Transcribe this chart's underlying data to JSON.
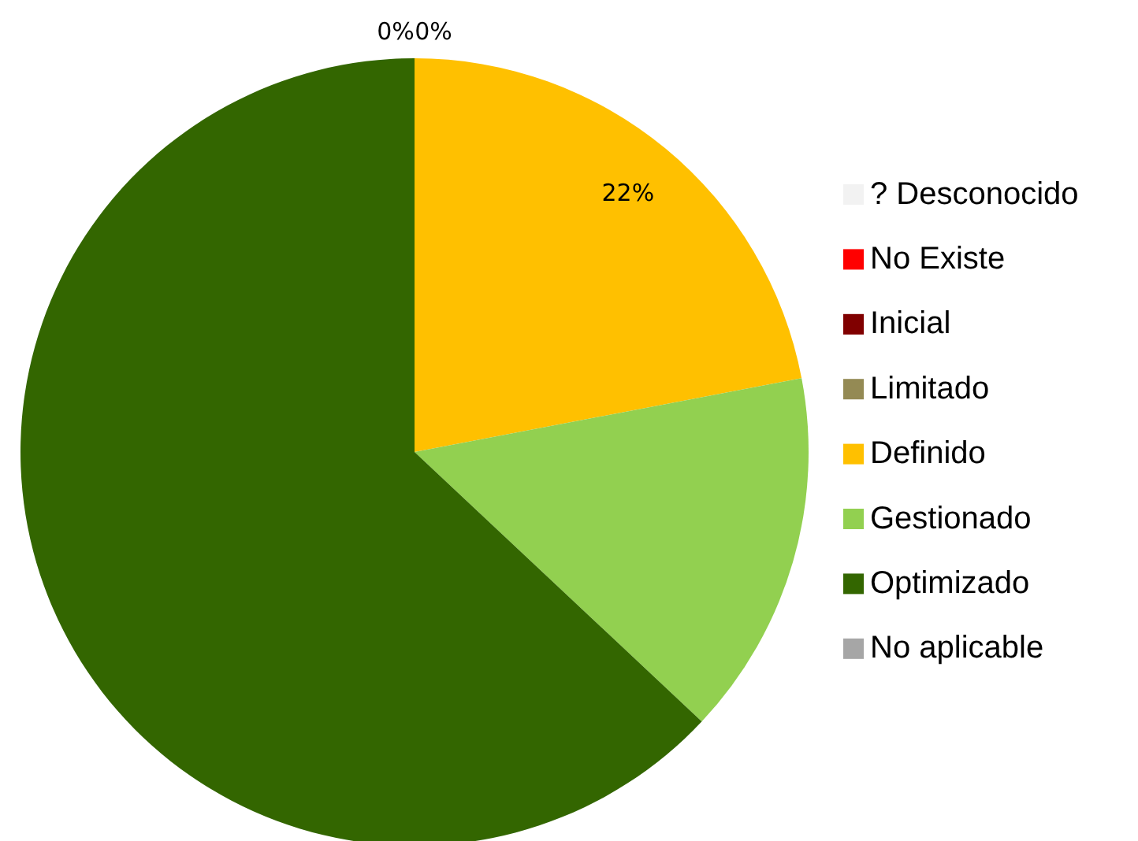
{
  "chart_data": {
    "type": "pie",
    "categories": [
      "? Desconocido",
      "No Existe",
      "Inicial",
      "Limitado",
      "Definido",
      "Gestionado",
      "Optimizado",
      "No aplicable"
    ],
    "values": [
      0,
      0,
      0,
      0,
      22,
      15,
      63,
      0
    ],
    "colors": [
      "#f2f2f2",
      "#ff0000",
      "#800000",
      "#948a54",
      "#ffc000",
      "#92d050",
      "#336600",
      "#a6a6a6"
    ],
    "value_labels": [
      "0%",
      "0%",
      null,
      null,
      "22%",
      null,
      null,
      null
    ],
    "legend": "right"
  }
}
